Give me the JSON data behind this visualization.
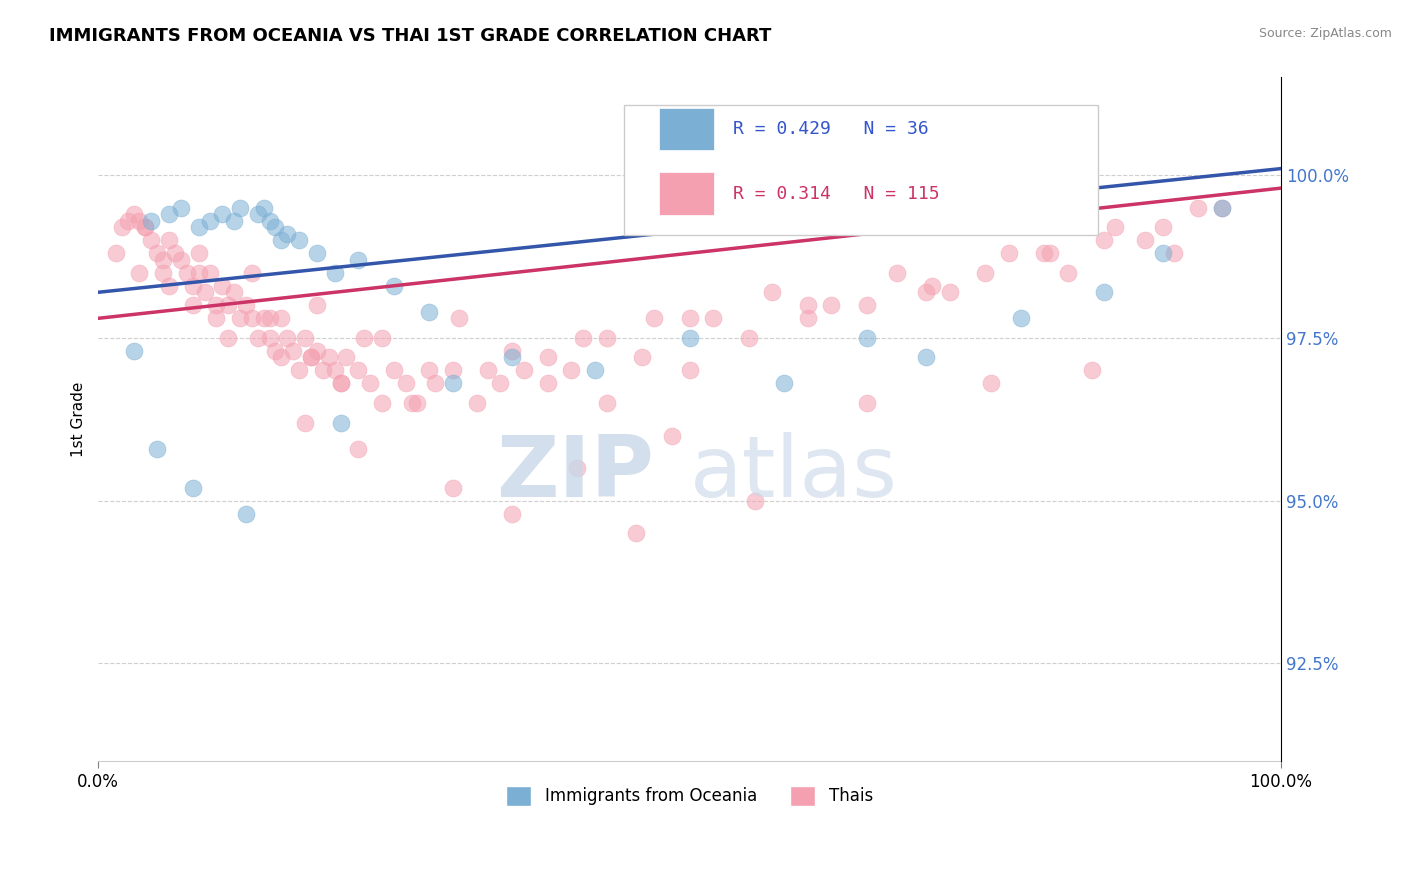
{
  "title": "IMMIGRANTS FROM OCEANIA VS THAI 1ST GRADE CORRELATION CHART",
  "source_text": "Source: ZipAtlas.com",
  "ylabel": "1st Grade",
  "y_tick_values": [
    92.5,
    95.0,
    97.5,
    100.0
  ],
  "xlim": [
    0.0,
    100.0
  ],
  "ylim": [
    91.0,
    101.5
  ],
  "blue_color": "#7BAFD4",
  "pink_color": "#F4A0B0",
  "blue_line_color": "#3355AA",
  "pink_line_color": "#CC3366",
  "legend_blue_text": "Immigrants from Oceania",
  "legend_pink_text": "Thais",
  "watermark_zip": "ZIP",
  "watermark_atlas": "atlas",
  "blue_R": 0.429,
  "blue_N": 36,
  "pink_R": 0.314,
  "pink_N": 115,
  "blue_line_x0": 0,
  "blue_line_y0": 98.2,
  "blue_line_x1": 100,
  "blue_line_y1": 100.1,
  "pink_line_x0": 0,
  "pink_line_y0": 97.8,
  "pink_line_x1": 100,
  "pink_line_y1": 99.8,
  "blue_scatter_x": [
    3.0,
    4.5,
    6.0,
    7.0,
    8.5,
    9.5,
    10.5,
    11.5,
    12.0,
    13.5,
    14.0,
    14.5,
    15.0,
    15.5,
    16.0,
    17.0,
    18.5,
    20.0,
    22.0,
    25.0,
    28.0,
    35.0,
    42.0,
    50.0,
    58.0,
    65.0,
    70.0,
    78.0,
    85.0,
    90.0,
    95.0,
    5.0,
    8.0,
    12.5,
    20.5,
    30.0
  ],
  "blue_scatter_y": [
    97.3,
    99.3,
    99.4,
    99.5,
    99.2,
    99.3,
    99.4,
    99.3,
    99.5,
    99.4,
    99.5,
    99.3,
    99.2,
    99.0,
    99.1,
    99.0,
    98.8,
    98.5,
    98.7,
    98.3,
    97.9,
    97.2,
    97.0,
    97.5,
    96.8,
    97.5,
    97.2,
    97.8,
    98.2,
    98.8,
    99.5,
    95.8,
    95.2,
    94.8,
    96.2,
    96.8
  ],
  "pink_scatter_x": [
    1.5,
    2.0,
    2.5,
    3.0,
    3.5,
    4.0,
    4.5,
    5.0,
    5.5,
    6.0,
    6.5,
    7.0,
    7.5,
    8.0,
    8.5,
    9.0,
    9.5,
    10.0,
    10.5,
    11.0,
    11.5,
    12.0,
    12.5,
    13.0,
    13.5,
    14.0,
    14.5,
    15.0,
    15.5,
    16.0,
    16.5,
    17.0,
    17.5,
    18.0,
    18.5,
    19.0,
    19.5,
    20.0,
    20.5,
    21.0,
    22.0,
    23.0,
    24.0,
    25.0,
    26.0,
    27.0,
    28.5,
    30.0,
    32.0,
    34.0,
    36.0,
    38.0,
    40.0,
    43.0,
    46.0,
    50.0,
    55.0,
    60.0,
    65.0,
    70.0,
    75.0,
    80.0,
    85.0,
    90.0,
    95.0,
    3.5,
    5.5,
    8.0,
    11.0,
    14.5,
    18.0,
    22.5,
    28.0,
    35.0,
    43.0,
    52.0,
    62.0,
    72.0,
    82.0,
    91.0,
    6.0,
    10.0,
    15.5,
    20.5,
    26.5,
    33.0,
    41.0,
    50.0,
    60.0,
    70.5,
    80.5,
    88.5,
    4.0,
    8.5,
    13.0,
    18.5,
    24.0,
    30.5,
    38.0,
    47.0,
    57.0,
    67.5,
    77.0,
    86.0,
    93.0,
    35.0,
    45.5,
    55.5,
    30.0,
    40.5,
    22.0,
    17.5,
    48.5,
    65.0,
    75.5,
    84.0
  ],
  "pink_scatter_y": [
    98.8,
    99.2,
    99.3,
    99.4,
    99.3,
    99.2,
    99.0,
    98.8,
    98.7,
    99.0,
    98.8,
    98.7,
    98.5,
    98.3,
    98.5,
    98.2,
    98.5,
    98.0,
    98.3,
    98.0,
    98.2,
    97.8,
    98.0,
    97.8,
    97.5,
    97.8,
    97.5,
    97.3,
    97.8,
    97.5,
    97.3,
    97.0,
    97.5,
    97.2,
    97.3,
    97.0,
    97.2,
    97.0,
    96.8,
    97.2,
    97.0,
    96.8,
    96.5,
    97.0,
    96.8,
    96.5,
    96.8,
    97.0,
    96.5,
    96.8,
    97.0,
    96.8,
    97.0,
    96.5,
    97.2,
    97.0,
    97.5,
    97.8,
    98.0,
    98.2,
    98.5,
    98.8,
    99.0,
    99.2,
    99.5,
    98.5,
    98.5,
    98.0,
    97.5,
    97.8,
    97.2,
    97.5,
    97.0,
    97.3,
    97.5,
    97.8,
    98.0,
    98.2,
    98.5,
    98.8,
    98.3,
    97.8,
    97.2,
    96.8,
    96.5,
    97.0,
    97.5,
    97.8,
    98.0,
    98.3,
    98.8,
    99.0,
    99.2,
    98.8,
    98.5,
    98.0,
    97.5,
    97.8,
    97.2,
    97.8,
    98.2,
    98.5,
    98.8,
    99.2,
    99.5,
    94.8,
    94.5,
    95.0,
    95.2,
    95.5,
    95.8,
    96.2,
    96.0,
    96.5,
    96.8,
    97.0
  ]
}
